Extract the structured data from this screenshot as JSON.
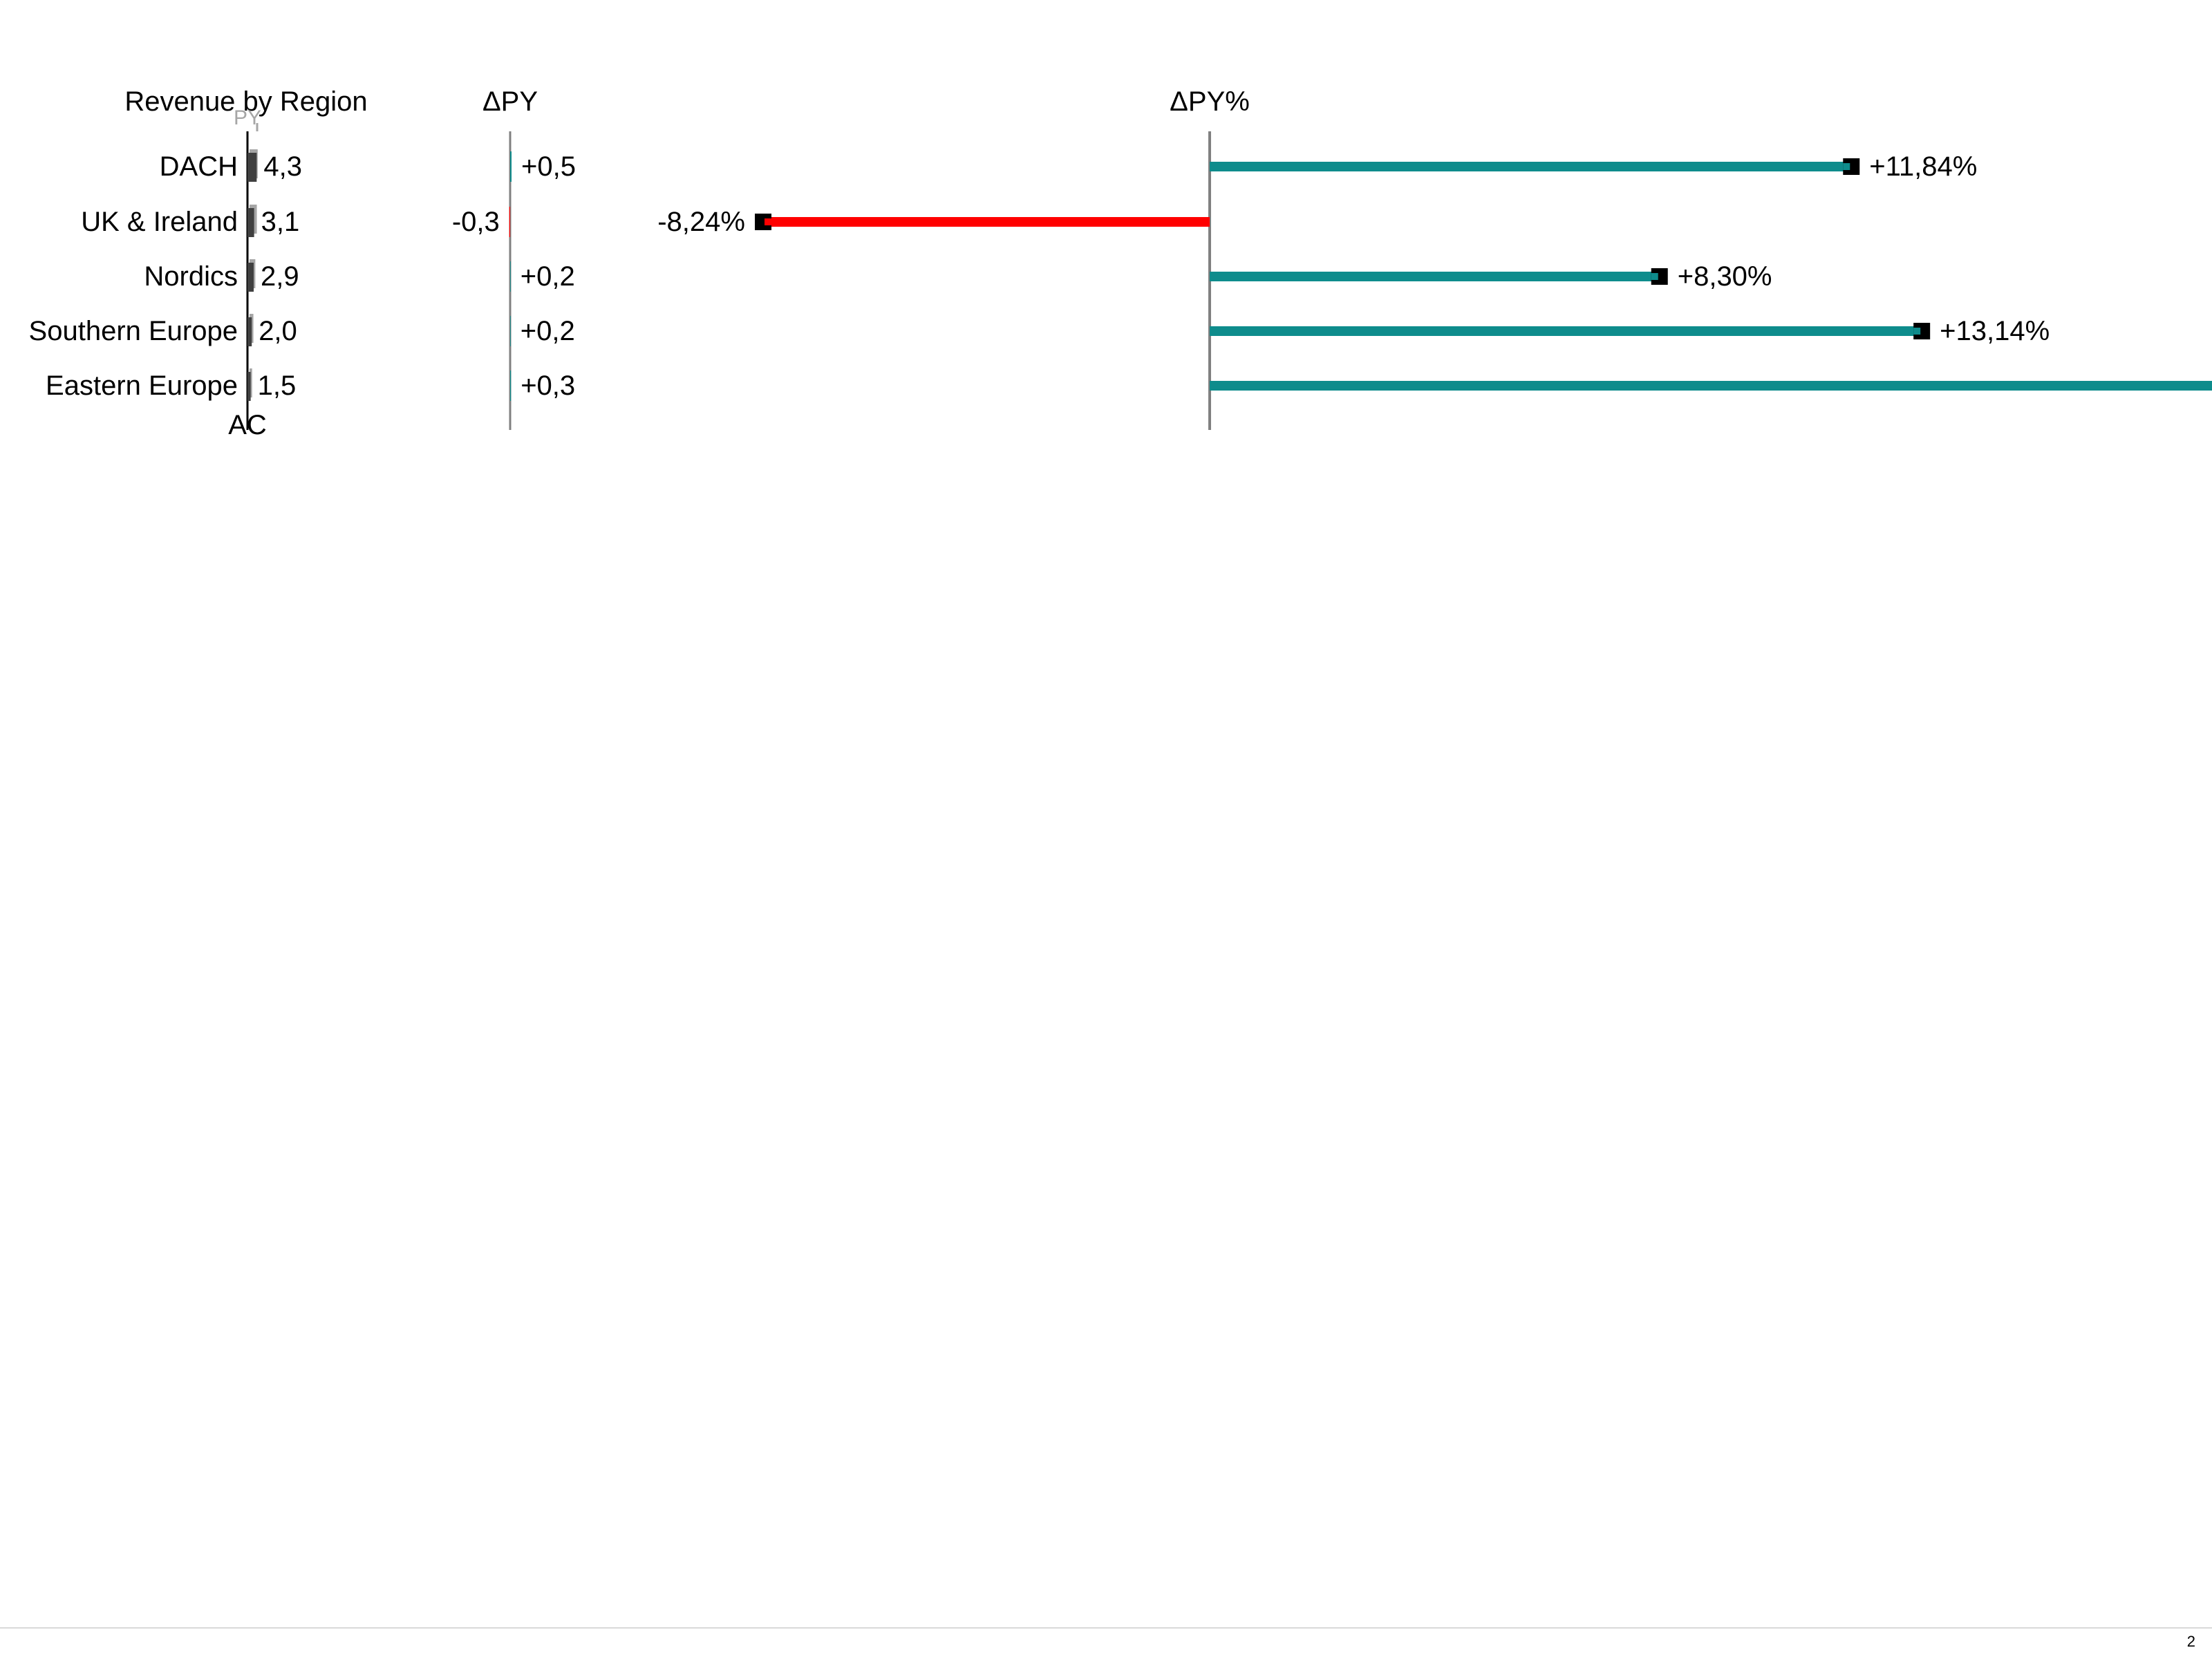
{
  "chart_data": {
    "type": "bar",
    "title": "Revenue by Region",
    "categories": [
      "DACH",
      "UK & Ireland",
      "Nordics",
      "Southern Europe",
      "Eastern Europe"
    ],
    "panels": {
      "ac": {
        "axis_label": "AC",
        "py_marker_label": "PY",
        "values": [
          4.3,
          3.1,
          2.9,
          2.0,
          1.5
        ],
        "value_labels": [
          "4,3",
          "3,1",
          "2,9",
          "2,0",
          "1,5"
        ]
      },
      "delta_py": {
        "header": "ΔPY",
        "values": [
          0.5,
          -0.3,
          0.2,
          0.2,
          0.3
        ],
        "value_labels": [
          "+0,5",
          "-0,3",
          "+0,2",
          "+0,2",
          "+0,3"
        ]
      },
      "delta_py_pct": {
        "header": "ΔPY%",
        "values": [
          11.84,
          -8.24,
          8.3,
          13.14,
          25
        ],
        "value_labels": [
          "+11,84%",
          "-8,24%",
          "+8,30%",
          "+13,14%",
          ""
        ]
      }
    },
    "colors": {
      "positive": "#0e8c8c",
      "negative": "#ff0000",
      "ac_bar": "#404040",
      "py_bar": "#a6a6a6",
      "axis": "#808080",
      "marker": "#000000"
    }
  },
  "page": {
    "number": "2"
  }
}
